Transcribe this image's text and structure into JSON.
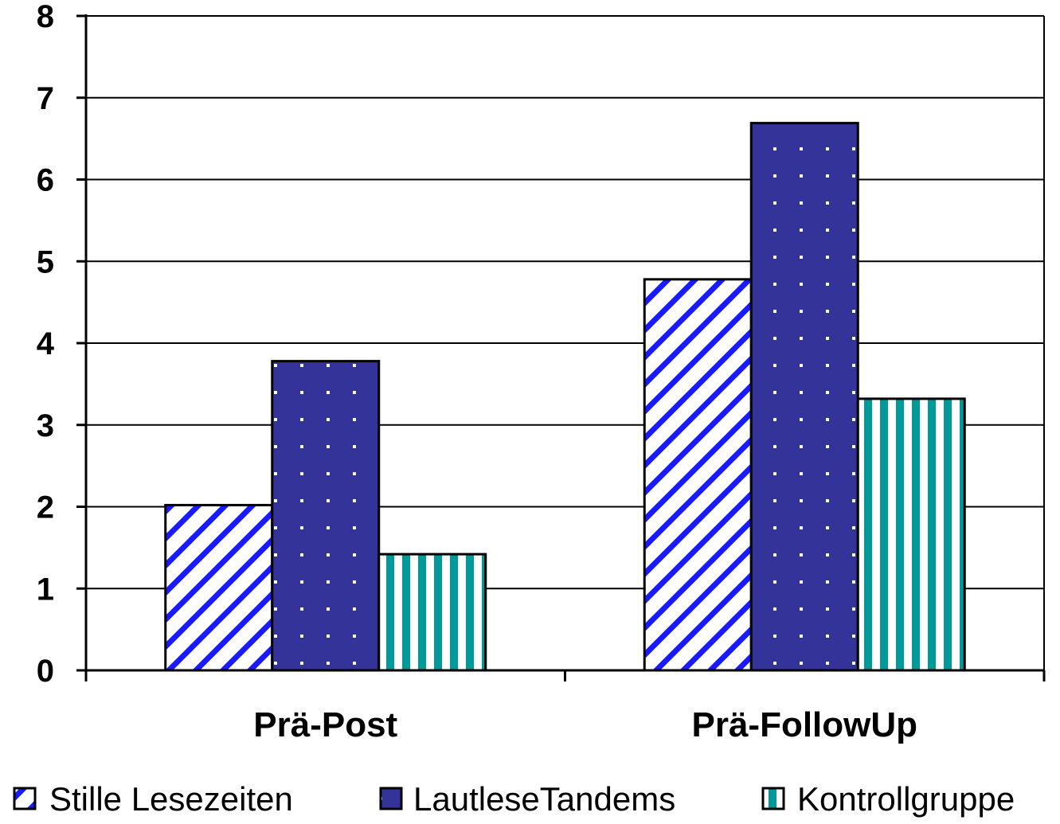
{
  "chart_data": {
    "type": "bar",
    "title": "",
    "xlabel": "",
    "ylabel": "",
    "categories": [
      "Prä-Post",
      "Prä-FollowUp"
    ],
    "series": [
      {
        "name": "Stille Lesezeiten",
        "values": [
          2.02,
          4.78
        ],
        "color": "#1a1aff",
        "pattern": "diagonal-stripes"
      },
      {
        "name": "LautleseTandems",
        "values": [
          3.78,
          6.69
        ],
        "color": "#333399",
        "pattern": "white-dots"
      },
      {
        "name": "Kontrollgruppe",
        "values": [
          1.42,
          3.32
        ],
        "color": "#009999",
        "pattern": "vertical-stripes"
      }
    ],
    "ylim": [
      0,
      8
    ],
    "yticks": [
      "0",
      "1",
      "2",
      "3",
      "4",
      "5",
      "6",
      "7",
      "8"
    ],
    "grid": true,
    "legend_position": "bottom"
  }
}
